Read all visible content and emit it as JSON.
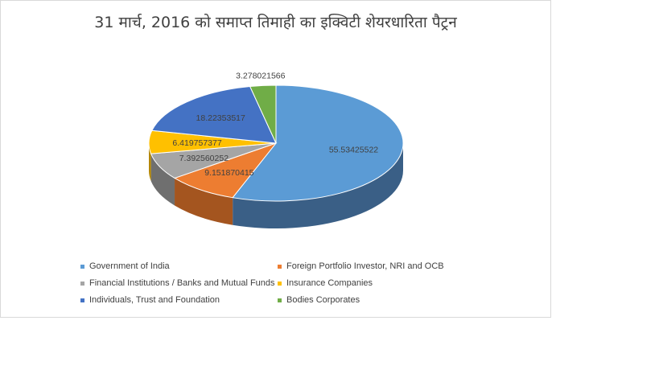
{
  "chart_data": {
    "type": "pie",
    "title": "31 मार्च, 2016 को समाप्त तिमाही का इक्विटी शेयरधारिता पैट्रन",
    "series": [
      {
        "name": "Government of India",
        "value": 55.53425522,
        "label": "55.53425522",
        "color": "#5b9bd5",
        "side": "#3a5f86"
      },
      {
        "name": "Foreign Portfolio Investor, NRI and OCB",
        "value": 9.151870415,
        "label": "9.151870415",
        "color": "#ed7d31",
        "side": "#a4551f"
      },
      {
        "name": "Financial Institutions / Banks and Mutual Funds",
        "value": 7.392560252,
        "label": "7.392560252",
        "color": "#a5a5a5",
        "side": "#6f6f6f"
      },
      {
        "name": "Insurance Companies",
        "value": 6.419757377,
        "label": "6.419757377",
        "color": "#ffc000",
        "side": "#b38600"
      },
      {
        "name": "Individuals, Trust and Foundation",
        "value": 18.22353517,
        "label": "18.22353517",
        "color": "#4472c4",
        "side": "#2c4a80"
      },
      {
        "name": "Bodies Corporates",
        "value": 3.278021566,
        "label": "3.278021566",
        "color": "#70ad47",
        "side": "#4a7530"
      }
    ],
    "legend_position": "bottom"
  }
}
